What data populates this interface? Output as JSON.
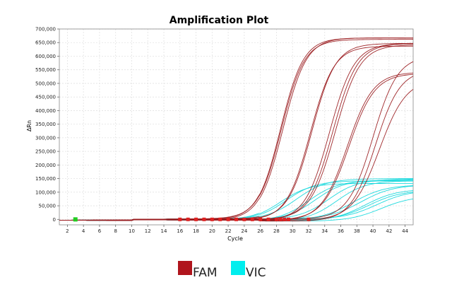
{
  "chart_data": {
    "type": "line",
    "title": "Amplification Plot",
    "xlabel": "Cycle",
    "ylabel": "ΔRn",
    "xlim": [
      1,
      45
    ],
    "ylim": [
      -20000,
      700000
    ],
    "xticks": [
      2,
      4,
      6,
      8,
      10,
      12,
      14,
      16,
      18,
      20,
      22,
      24,
      26,
      28,
      30,
      32,
      34,
      36,
      38,
      40,
      42,
      44
    ],
    "yticks": [
      0,
      50000,
      100000,
      150000,
      200000,
      250000,
      300000,
      350000,
      400000,
      450000,
      500000,
      550000,
      600000,
      650000,
      700000
    ],
    "ytick_labels": [
      "0",
      "50,000",
      "100,000",
      "150,000",
      "200,000",
      "250,000",
      "300,000",
      "350,000",
      "400,000",
      "450,000",
      "500,000",
      "550,000",
      "600,000",
      "650,000",
      "700,000"
    ],
    "grid": true,
    "legend": [
      {
        "name": "FAM",
        "color": "#b0151d"
      },
      {
        "name": "VIC",
        "color": "#00eeee"
      }
    ],
    "series": [
      {
        "name": "FAM",
        "color": "#9a1b1f",
        "mid": 28.5,
        "slope": 0.7,
        "plateau": 670000
      },
      {
        "name": "FAM",
        "color": "#9a1b1f",
        "mid": 28.6,
        "slope": 0.7,
        "plateau": 660000
      },
      {
        "name": "FAM",
        "color": "#9a1b1f",
        "mid": 28.8,
        "slope": 0.68,
        "plateau": 675000
      },
      {
        "name": "FAM",
        "color": "#9a1b1f",
        "mid": 32.2,
        "slope": 0.68,
        "plateau": 640000
      },
      {
        "name": "FAM",
        "color": "#9a1b1f",
        "mid": 32.4,
        "slope": 0.68,
        "plateau": 645000
      },
      {
        "name": "FAM",
        "color": "#9a1b1f",
        "mid": 34.6,
        "slope": 0.65,
        "plateau": 655000
      },
      {
        "name": "FAM",
        "color": "#9a1b1f",
        "mid": 35.0,
        "slope": 0.65,
        "plateau": 650000
      },
      {
        "name": "FAM",
        "color": "#9a1b1f",
        "mid": 35.3,
        "slope": 0.65,
        "plateau": 640000
      },
      {
        "name": "FAM",
        "color": "#9a1b1f",
        "mid": 36.8,
        "slope": 0.62,
        "plateau": 550000
      },
      {
        "name": "FAM",
        "color": "#9a1b1f",
        "mid": 37.0,
        "slope": 0.62,
        "plateau": 540000
      },
      {
        "name": "FAM",
        "color": "#9a1b1f",
        "mid": 40.0,
        "slope": 0.65,
        "plateau": 600000
      },
      {
        "name": "FAM",
        "color": "#9a1b1f",
        "mid": 40.3,
        "slope": 0.65,
        "plateau": 560000
      },
      {
        "name": "FAM",
        "color": "#9a1b1f",
        "mid": 40.8,
        "slope": 0.6,
        "plateau": 520000
      },
      {
        "name": "VIC",
        "color": "#14d8dc",
        "mid": 28.5,
        "slope": 0.55,
        "plateau": 140000
      },
      {
        "name": "VIC",
        "color": "#14d8dc",
        "mid": 29.2,
        "slope": 0.55,
        "plateau": 145000
      },
      {
        "name": "VIC",
        "color": "#14d8dc",
        "mid": 30.5,
        "slope": 0.55,
        "plateau": 148000
      },
      {
        "name": "VIC",
        "color": "#14d8dc",
        "mid": 32.0,
        "slope": 0.55,
        "plateau": 150000
      },
      {
        "name": "VIC",
        "color": "#14d8dc",
        "mid": 32.8,
        "slope": 0.55,
        "plateau": 148000
      },
      {
        "name": "VIC",
        "color": "#14d8dc",
        "mid": 34.5,
        "slope": 0.55,
        "plateau": 146000
      },
      {
        "name": "VIC",
        "color": "#14d8dc",
        "mid": 35.5,
        "slope": 0.55,
        "plateau": 150000
      },
      {
        "name": "VIC",
        "color": "#14d8dc",
        "mid": 37.5,
        "slope": 0.5,
        "plateau": 130000
      },
      {
        "name": "VIC",
        "color": "#14d8dc",
        "mid": 38.5,
        "slope": 0.5,
        "plateau": 125000
      },
      {
        "name": "VIC",
        "color": "#14d8dc",
        "mid": 39.0,
        "slope": 0.5,
        "plateau": 120000
      },
      {
        "name": "VIC",
        "color": "#14d8dc",
        "mid": 39.5,
        "slope": 0.5,
        "plateau": 110000
      },
      {
        "name": "VIC",
        "color": "#14d8dc",
        "mid": 40.5,
        "slope": 0.5,
        "plateau": 105000
      },
      {
        "name": "VIC",
        "color": "#14d8dc",
        "mid": 41.0,
        "slope": 0.5,
        "plateau": 95000
      }
    ],
    "threshold_markers": {
      "color": "#dd2222",
      "cycles": [
        16.0,
        17.0,
        18.0,
        19.0,
        20.0,
        21.0,
        22.0,
        23.0,
        24.0,
        25.0,
        26.0,
        27.0,
        28.0,
        28.5,
        29.0,
        29.5,
        32.0
      ]
    },
    "baseline_marker": {
      "color": "#22cc22",
      "cycle": 3
    }
  }
}
